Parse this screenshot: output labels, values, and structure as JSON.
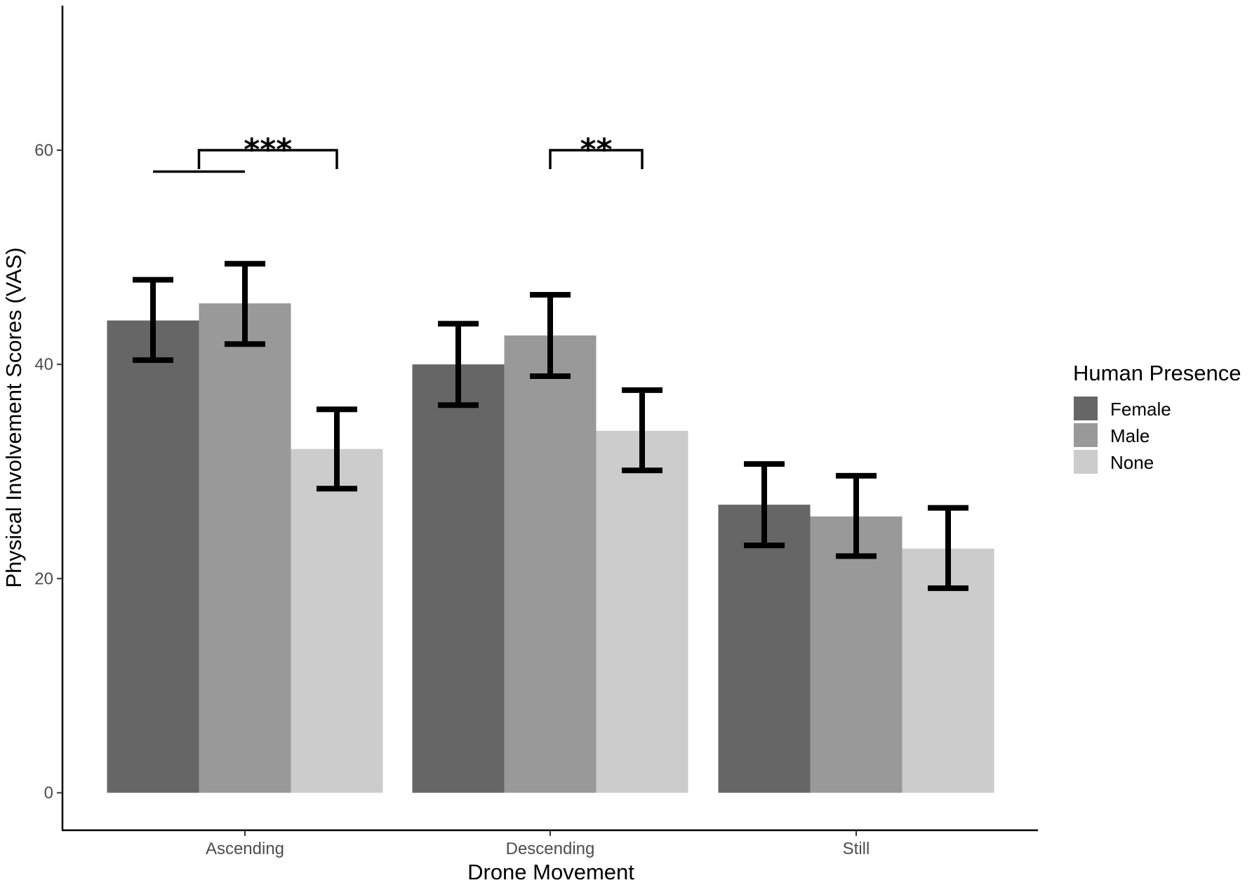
{
  "chart_data": {
    "type": "bar",
    "xlabel": "Drone Movement",
    "ylabel": "Physical Involvement Scores (VAS)",
    "categories": [
      "Ascending",
      "Descending",
      "Still"
    ],
    "ylim": [
      -3.5,
      73.5
    ],
    "yticks": [
      0,
      20,
      40,
      60
    ],
    "grid": false,
    "legend": {
      "title": "Human Presence",
      "position": "right"
    },
    "series": [
      {
        "name": "Female",
        "color": "#666666",
        "values": [
          44.1,
          40.0,
          26.9
        ],
        "err_low": [
          40.4,
          36.2,
          23.1
        ],
        "err_high": [
          47.9,
          43.8,
          30.7
        ]
      },
      {
        "name": "Male",
        "color": "#999999",
        "values": [
          45.7,
          42.7,
          25.8
        ],
        "err_low": [
          41.9,
          38.9,
          22.1
        ],
        "err_high": [
          49.4,
          46.5,
          29.6
        ]
      },
      {
        "name": "None",
        "color": "#cccccc",
        "values": [
          32.1,
          33.8,
          22.8
        ],
        "err_low": [
          28.4,
          30.1,
          19.1
        ],
        "err_high": [
          35.8,
          37.6,
          26.6
        ]
      }
    ],
    "annotations": [
      {
        "label": "***",
        "type": "bracket",
        "from": {
          "category": 0,
          "series": 0.5
        },
        "to": {
          "category": 0,
          "series": 2
        },
        "y": 60,
        "sub_line": {
          "from": {
            "category": 0,
            "series": 0
          },
          "to": {
            "category": 0,
            "series": 1
          },
          "y": 58
        }
      },
      {
        "label": "**",
        "type": "bracket",
        "from": {
          "category": 1,
          "series": 1
        },
        "to": {
          "category": 1,
          "series": 2
        },
        "y": 60
      }
    ]
  }
}
